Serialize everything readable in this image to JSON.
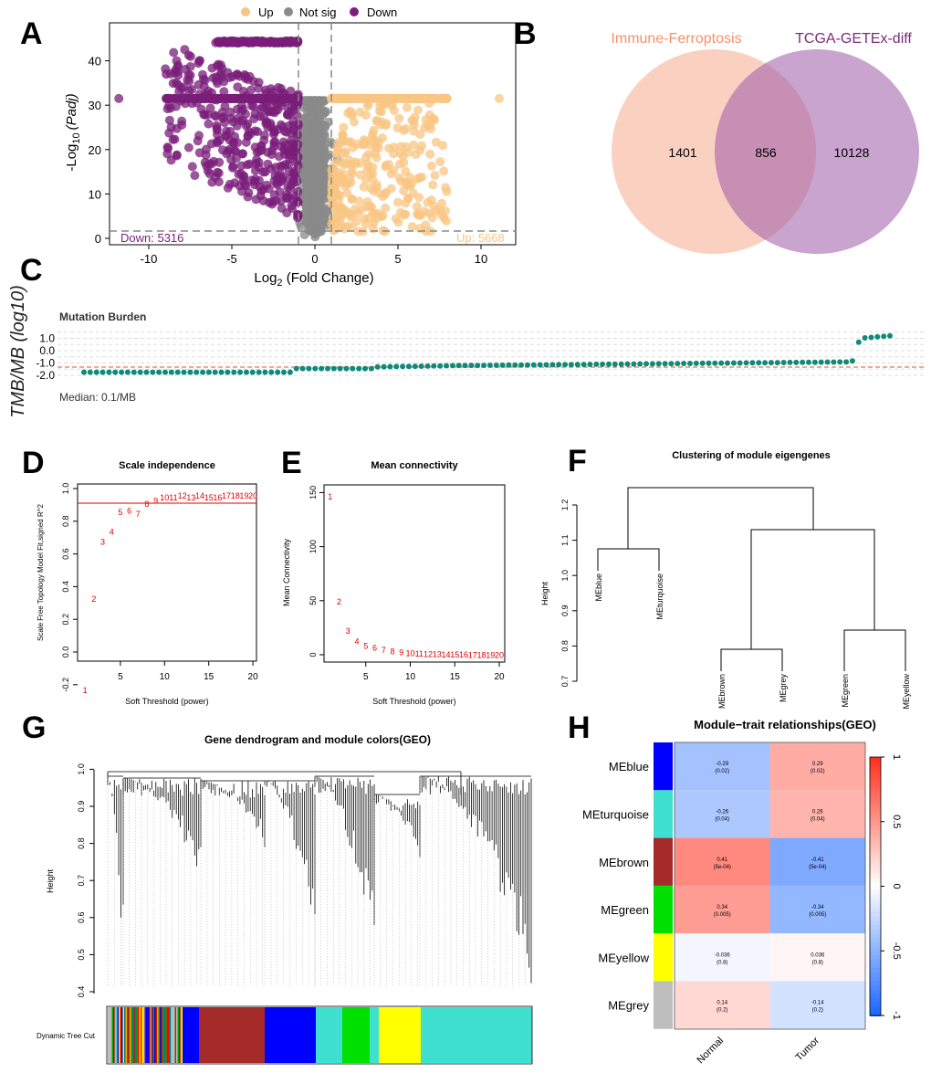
{
  "panels": {
    "A": "A",
    "B": "B",
    "C": "C",
    "D": "D",
    "E": "E",
    "F": "F",
    "G": "G",
    "H": "H"
  },
  "colors": {
    "up": "#f8c583",
    "down": "#7a1e7a",
    "notsig": "#8a8a8a",
    "venn_left": "#f7b9a0",
    "venn_right": "#b98ac4",
    "teal": "#0e8a78",
    "red_line": "#d7301f"
  },
  "volcano": {
    "legend": {
      "up": "Up",
      "notsig": "Not sig",
      "down": "Down"
    },
    "xlabel_prefix": "Log",
    "xlabel_sub": "2",
    "xlabel_suffix": " (Fold Change)",
    "ylabel_prefix": "-Log",
    "ylabel_sub": "10",
    "ylabel_italic": "(Padj)",
    "x_ticks": [
      "-10",
      "-5",
      "0",
      "5",
      "10"
    ],
    "y_ticks": [
      "0",
      "10",
      "20",
      "30",
      "40"
    ],
    "down_label": "Down: 5316",
    "up_label": "Up: 5668"
  },
  "venn": {
    "left_label": "Immune-Ferroptosis",
    "right_label": "TCGA-GETEx-diff",
    "left_only": "1401",
    "overlap": "856",
    "right_only": "10128"
  },
  "tmb": {
    "title": "Mutation Burden",
    "ylabel": "TMB/MB (log10)",
    "y_ticks": [
      "1.0",
      "0.0",
      "-1.0",
      "-2.0"
    ],
    "median": "Median: 0.1/MB"
  },
  "scale": {
    "title": "Scale independence",
    "xlabel": "Soft Threshold (power)",
    "ylabel": "Scale Free Topology Model Fit,signed R^2",
    "x_ticks": [
      "5",
      "10",
      "15",
      "20"
    ],
    "y_ticks": [
      "-0.2",
      "0.0",
      "0.2",
      "0.4",
      "0.6",
      "0.8",
      "1.0"
    ],
    "powers": [
      "1",
      "2",
      "3",
      "4",
      "5",
      "6",
      "7",
      "8",
      "9",
      "10",
      "11",
      "12",
      "13",
      "14",
      "15",
      "16",
      "17",
      "18",
      "19",
      "20"
    ],
    "r2": [
      -0.23,
      0.33,
      0.68,
      0.74,
      0.86,
      0.87,
      0.85,
      0.91,
      0.93,
      0.95,
      0.95,
      0.96,
      0.95,
      0.96,
      0.95,
      0.95,
      0.96,
      0.96,
      0.96,
      0.96
    ]
  },
  "mean": {
    "title": "Mean connectivity",
    "xlabel": "Soft Threshold (power)",
    "ylabel": "Mean Connectivity",
    "x_ticks": [
      "5",
      "10",
      "15",
      "20"
    ],
    "y_ticks": [
      "0",
      "50",
      "100",
      "150"
    ],
    "powers": [
      "1",
      "2",
      "3",
      "4",
      "5",
      "6",
      "7",
      "8",
      "9",
      "10",
      "11",
      "12",
      "13",
      "14",
      "15",
      "16",
      "17",
      "18",
      "19",
      "20"
    ],
    "k": [
      147,
      50,
      23,
      13,
      9,
      7,
      5,
      4,
      3,
      2,
      1.7,
      1.4,
      1.2,
      1,
      0.8,
      0.7,
      0.6,
      0.5,
      0.4,
      0.3
    ]
  },
  "cluster": {
    "title": "Clustering of module eigengenes",
    "ylabel": "Height",
    "y_ticks": [
      "0.7",
      "0.8",
      "0.9",
      "1.0",
      "1.1",
      "1.2"
    ],
    "leaves": [
      "MEblue",
      "MEturquoise",
      "MEbrown",
      "MEgrey",
      "MEgreen",
      "MEyellow"
    ]
  },
  "dendro": {
    "title": "Gene dendrogram and module colors(GEO)",
    "ylabel": "Height",
    "y_ticks": [
      "0.4",
      "0.5",
      "0.6",
      "0.7",
      "0.8",
      "0.9",
      "1.0"
    ],
    "cut_label": "Dynamic Tree Cut"
  },
  "heatmap": {
    "title": "Module−trait relationships(GEO)",
    "rows": [
      "MEblue",
      "MEturquoise",
      "MEbrown",
      "MEgreen",
      "MEyellow",
      "MEgrey"
    ],
    "row_colors": [
      "#0000ff",
      "#40e0d0",
      "#a52a2a",
      "#00e000",
      "#ffff00",
      "#bebebe"
    ],
    "cols": [
      "Normal",
      "Tumor"
    ],
    "corr": [
      [
        -0.29,
        0.29
      ],
      [
        -0.26,
        0.26
      ],
      [
        0.41,
        -0.41
      ],
      [
        0.34,
        -0.34
      ],
      [
        -0.036,
        0.036
      ],
      [
        0.14,
        -0.14
      ]
    ],
    "cells": [
      [
        "-0.29",
        "(0.02)",
        "0.29",
        "(0.02)"
      ],
      [
        "-0.26",
        "(0.04)",
        "0.26",
        "(0.04)"
      ],
      [
        "0.41",
        "(5e-04)",
        "-0.41",
        "(5e-04)"
      ],
      [
        "0.34",
        "(0.005)",
        "-0.34",
        "(0.005)"
      ],
      [
        "-0.036",
        "(0.8)",
        "0.036",
        "(0.8)"
      ],
      [
        "0.14",
        "(0.2)",
        "-0.14",
        "(0.2)"
      ]
    ],
    "scale_ticks": [
      "1",
      "0.5",
      "0",
      "-0.5",
      "-1"
    ]
  }
}
